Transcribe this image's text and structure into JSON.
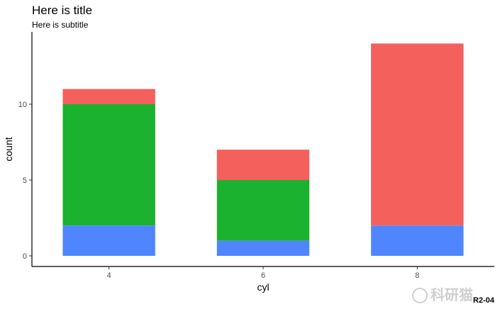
{
  "chart_data": {
    "type": "bar",
    "stacked": true,
    "title": "Here is title",
    "subtitle": "Here is subtitle",
    "xlabel": "cyl",
    "ylabel": "count",
    "categories": [
      "4",
      "6",
      "8"
    ],
    "y_ticks": [
      0,
      5,
      10
    ],
    "ylim": [
      0,
      14
    ],
    "grid": false,
    "legend": "none",
    "series": [
      {
        "values": [
          2,
          1,
          2
        ],
        "color": "#4f86ff"
      },
      {
        "values": [
          8,
          4,
          0
        ],
        "color": "#1ab22f"
      },
      {
        "values": [
          1,
          2,
          12
        ],
        "color": "#f4605c"
      }
    ]
  },
  "watermark_text": "科研猫",
  "corner_note": "R2-04"
}
